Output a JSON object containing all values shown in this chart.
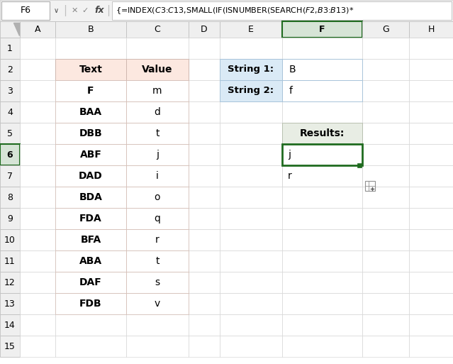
{
  "formula_bar_cell": "F6",
  "formula_bar_text": "{=INDEX($C$3:$C$13,SMALL(IF(ISNUMBER(SEARCH($F$2,$B$3:$B$13)*",
  "col_headers": [
    "A",
    "B",
    "C",
    "D",
    "E",
    "F",
    "G",
    "H"
  ],
  "row_headers": [
    "1",
    "2",
    "3",
    "4",
    "5",
    "6",
    "7",
    "8",
    "9",
    "10",
    "11",
    "12",
    "13",
    "14",
    "15"
  ],
  "main_table_header": [
    "Text",
    "Value"
  ],
  "main_table_data": [
    [
      "F",
      "m"
    ],
    [
      "BAA",
      "d"
    ],
    [
      "DBB",
      "t"
    ],
    [
      "ABF",
      "j"
    ],
    [
      "DAD",
      "i"
    ],
    [
      "BDA",
      "o"
    ],
    [
      "FDA",
      "q"
    ],
    [
      "BFA",
      "r"
    ],
    [
      "ABA",
      "t"
    ],
    [
      "DAF",
      "s"
    ],
    [
      "FDB",
      "v"
    ]
  ],
  "string_labels": [
    "String 1:",
    "String 2:"
  ],
  "string_values": [
    "B",
    "f"
  ],
  "results_header": "Results:",
  "results_values": [
    "j",
    "r"
  ],
  "bg_color": "#ffffff",
  "header_row_color": "#fce8e0",
  "string_label_color": "#daeaf6",
  "results_header_color": "#e8ede4",
  "grid_color": "#d0d0d0",
  "active_cell_border": "#1f6b1f",
  "topbar_bg": "#f2f2f2",
  "col_header_active_bg": "#d6e4d6",
  "row_header_active_bg": "#d6e4d6",
  "formula_bar_border": "#c0c0c0"
}
